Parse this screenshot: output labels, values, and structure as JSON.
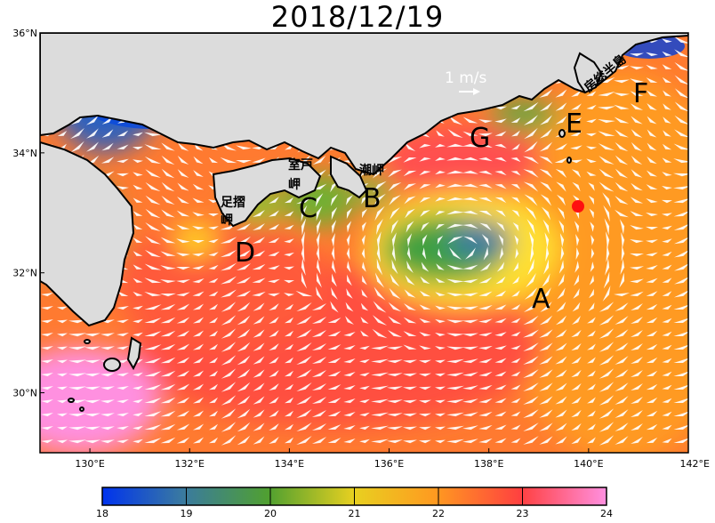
{
  "title": "2018/12/19",
  "map": {
    "lon_range": [
      129,
      142
    ],
    "lat_range": [
      29,
      36
    ],
    "lon_ticks": [
      "130°E",
      "132°E",
      "134°E",
      "136°E",
      "138°E",
      "140°E",
      "142°E"
    ],
    "lat_ticks": [
      "36°N",
      "34°N",
      "32°N",
      "30°N"
    ],
    "vector_scale_label": "1 m/s",
    "land_color": "#dcdcdc",
    "vector_color": "#ffffff"
  },
  "places": [
    {
      "id": "boso",
      "label": "房総半島"
    },
    {
      "id": "muroto",
      "label": "室戸岬"
    },
    {
      "id": "shiono",
      "label": "潮岬"
    },
    {
      "id": "ashizuri",
      "label": "足摺岬"
    }
  ],
  "letters": [
    "A",
    "B",
    "C",
    "D",
    "E",
    "F",
    "G"
  ],
  "colorbar": {
    "ticks": [
      "18",
      "19",
      "20",
      "21",
      "22",
      "23",
      "24"
    ],
    "range": [
      18,
      24
    ],
    "colors": [
      "#0033ee",
      "#3a7aa0",
      "#50a030",
      "#e8d020",
      "#ff9a20",
      "#ff4040",
      "#ff90e0"
    ]
  }
}
